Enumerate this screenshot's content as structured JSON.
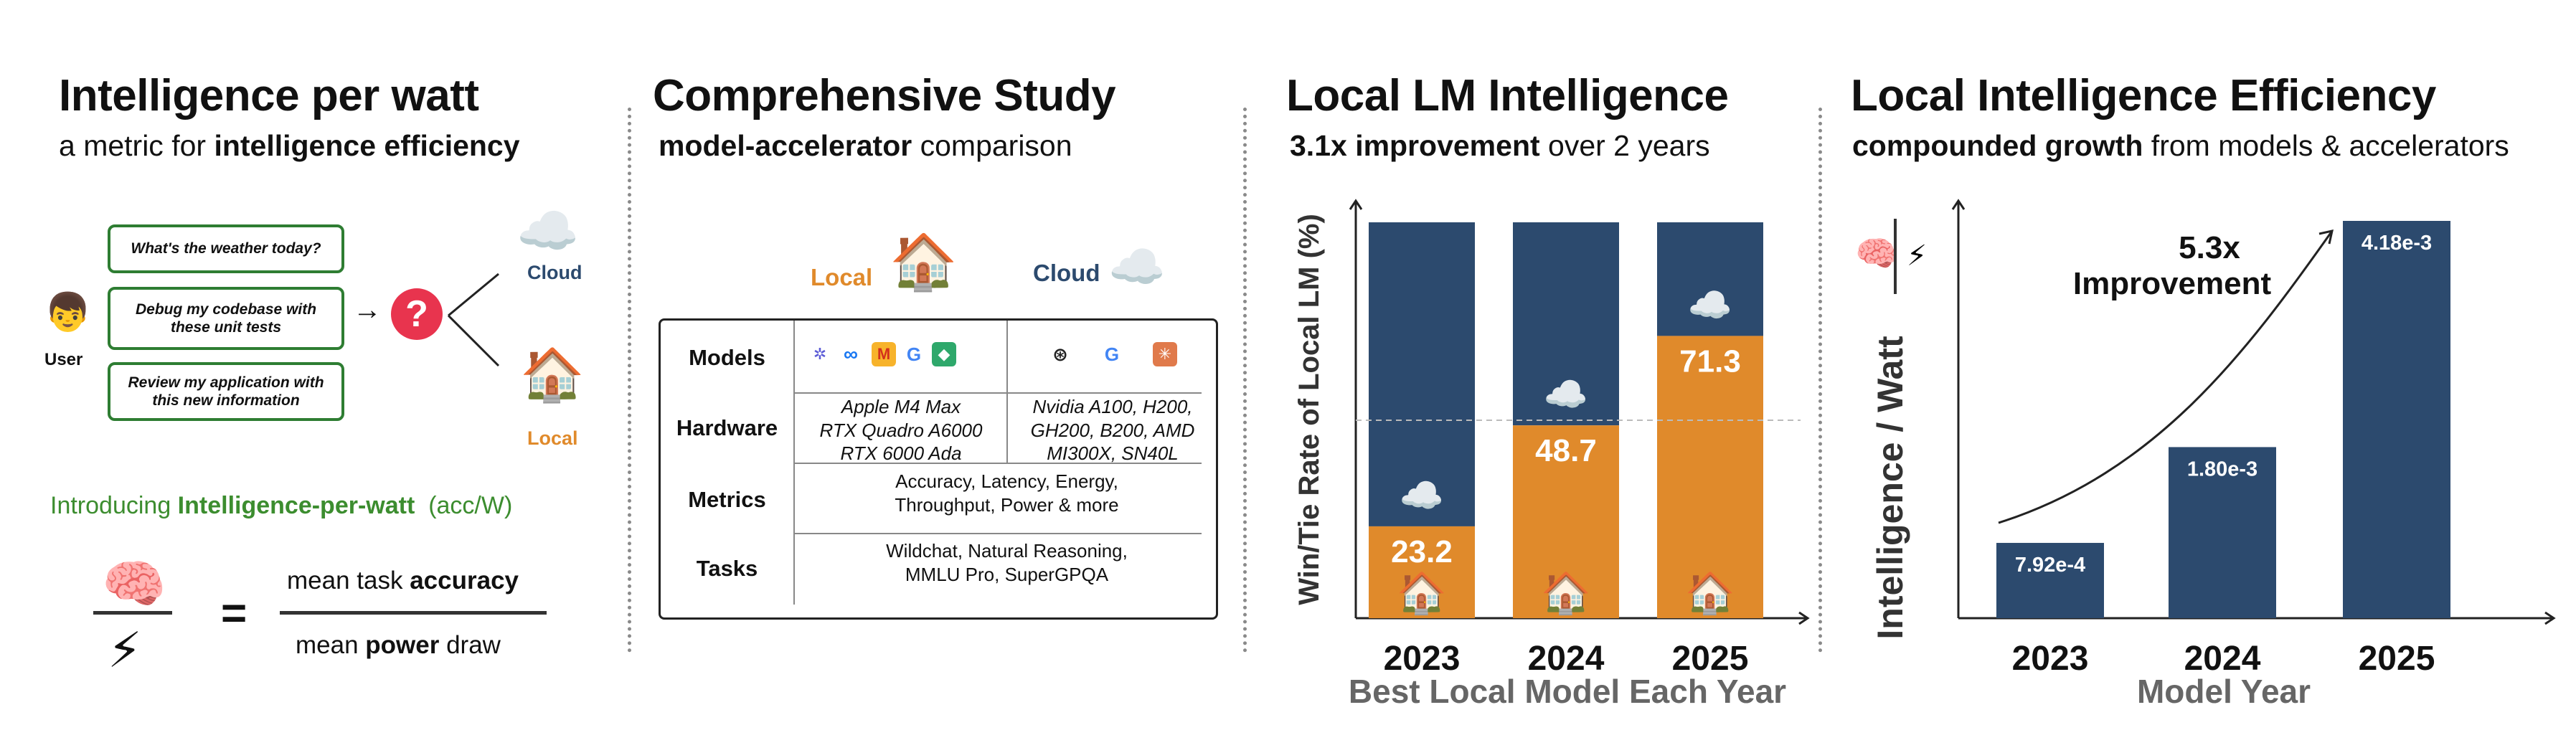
{
  "panel1": {
    "title": "Intelligence per watt",
    "subtitle_plain": "a metric for ",
    "subtitle_bold": "intelligence efficiency",
    "queries": [
      "What's the weather today?",
      "Debug my codebase with these unit tests",
      "Review my application with this new information"
    ],
    "user_label": "User",
    "cloud_label": "Cloud",
    "local_label": "Local",
    "question_mark": "?",
    "arrow": "→",
    "intro_plain": "Introducing ",
    "intro_bold": "Intelligence-per-watt",
    "intro_unit": "(acc/W)",
    "equals": "=",
    "numerator_plain": "mean task ",
    "numerator_bold": "accuracy",
    "denominator_plain_1": "mean ",
    "denominator_bold": "power",
    "denominator_plain_2": " draw",
    "colors": {
      "green": "#2e7d32",
      "red": "#e8344e",
      "cloud": "#2c4a6e",
      "local": "#e08a2b"
    }
  },
  "panel2": {
    "title": "Comprehensive Study",
    "subtitle_bold": "model-accelerator",
    "subtitle_plain": " comparison",
    "local_header": "Local",
    "cloud_header": "Cloud",
    "rows": [
      {
        "label": "Models",
        "local": "",
        "cloud": ""
      },
      {
        "label": "Hardware",
        "local": "Apple M4 Max\nRTX Quadro A6000\nRTX 6000 Ada",
        "cloud": "Nvidia A100, H200,\nGH200, B200, AMD\nMI300X, SN40L"
      },
      {
        "label": "Metrics",
        "value": "Accuracy, Latency, Energy,\nThroughput, Power & more"
      },
      {
        "label": "Tasks",
        "value": "Wildchat, Natural Reasoning,\nMMLU Pro, SuperGPQA"
      }
    ],
    "local_logos": [
      "qwen-logo-icon",
      "meta-logo-icon",
      "mistral-logo-icon",
      "google-logo-icon",
      "ibm-logo-icon"
    ],
    "cloud_logos": [
      "openai-logo-icon",
      "google-logo-icon",
      "anthropic-logo-icon"
    ]
  },
  "chart_data": [
    {
      "type": "bar",
      "title": "Local LM Intelligence",
      "subtitle_bold": "3.1x improvement",
      "subtitle_plain": " over 2 years",
      "categories": [
        "2023",
        "2024",
        "2025"
      ],
      "series": [
        {
          "name": "Local",
          "color": "#e08a2b",
          "values": [
            23.2,
            48.7,
            71.3
          ]
        },
        {
          "name": "Cloud",
          "color": "#2c4a6e",
          "values": [
            76.8,
            51.3,
            28.7
          ]
        }
      ],
      "stacked": true,
      "data_labels": [
        "23.2",
        "48.7",
        "71.3"
      ],
      "xlabel": "Best Local Model Each Year",
      "ylabel": "Win/Tie Rate of Local LM (%)",
      "ylim": [
        0,
        100
      ],
      "reference_line": 50
    },
    {
      "type": "bar",
      "title": "Local Intelligence Efficiency",
      "subtitle_bold": "compounded growth",
      "subtitle_plain": " from models & accelerators",
      "categories": [
        "2023",
        "2024",
        "2025"
      ],
      "values": [
        0.000792,
        0.0018,
        0.00418
      ],
      "data_labels": [
        "7.92e-4",
        "1.80e-3",
        "4.18e-3"
      ],
      "color": "#2c4a6e",
      "xlabel": "Model Year",
      "ylabel": "Intelligence / Watt",
      "ylim": [
        0,
        0.00418
      ],
      "annotation": "5.3x\nImprovement"
    }
  ]
}
